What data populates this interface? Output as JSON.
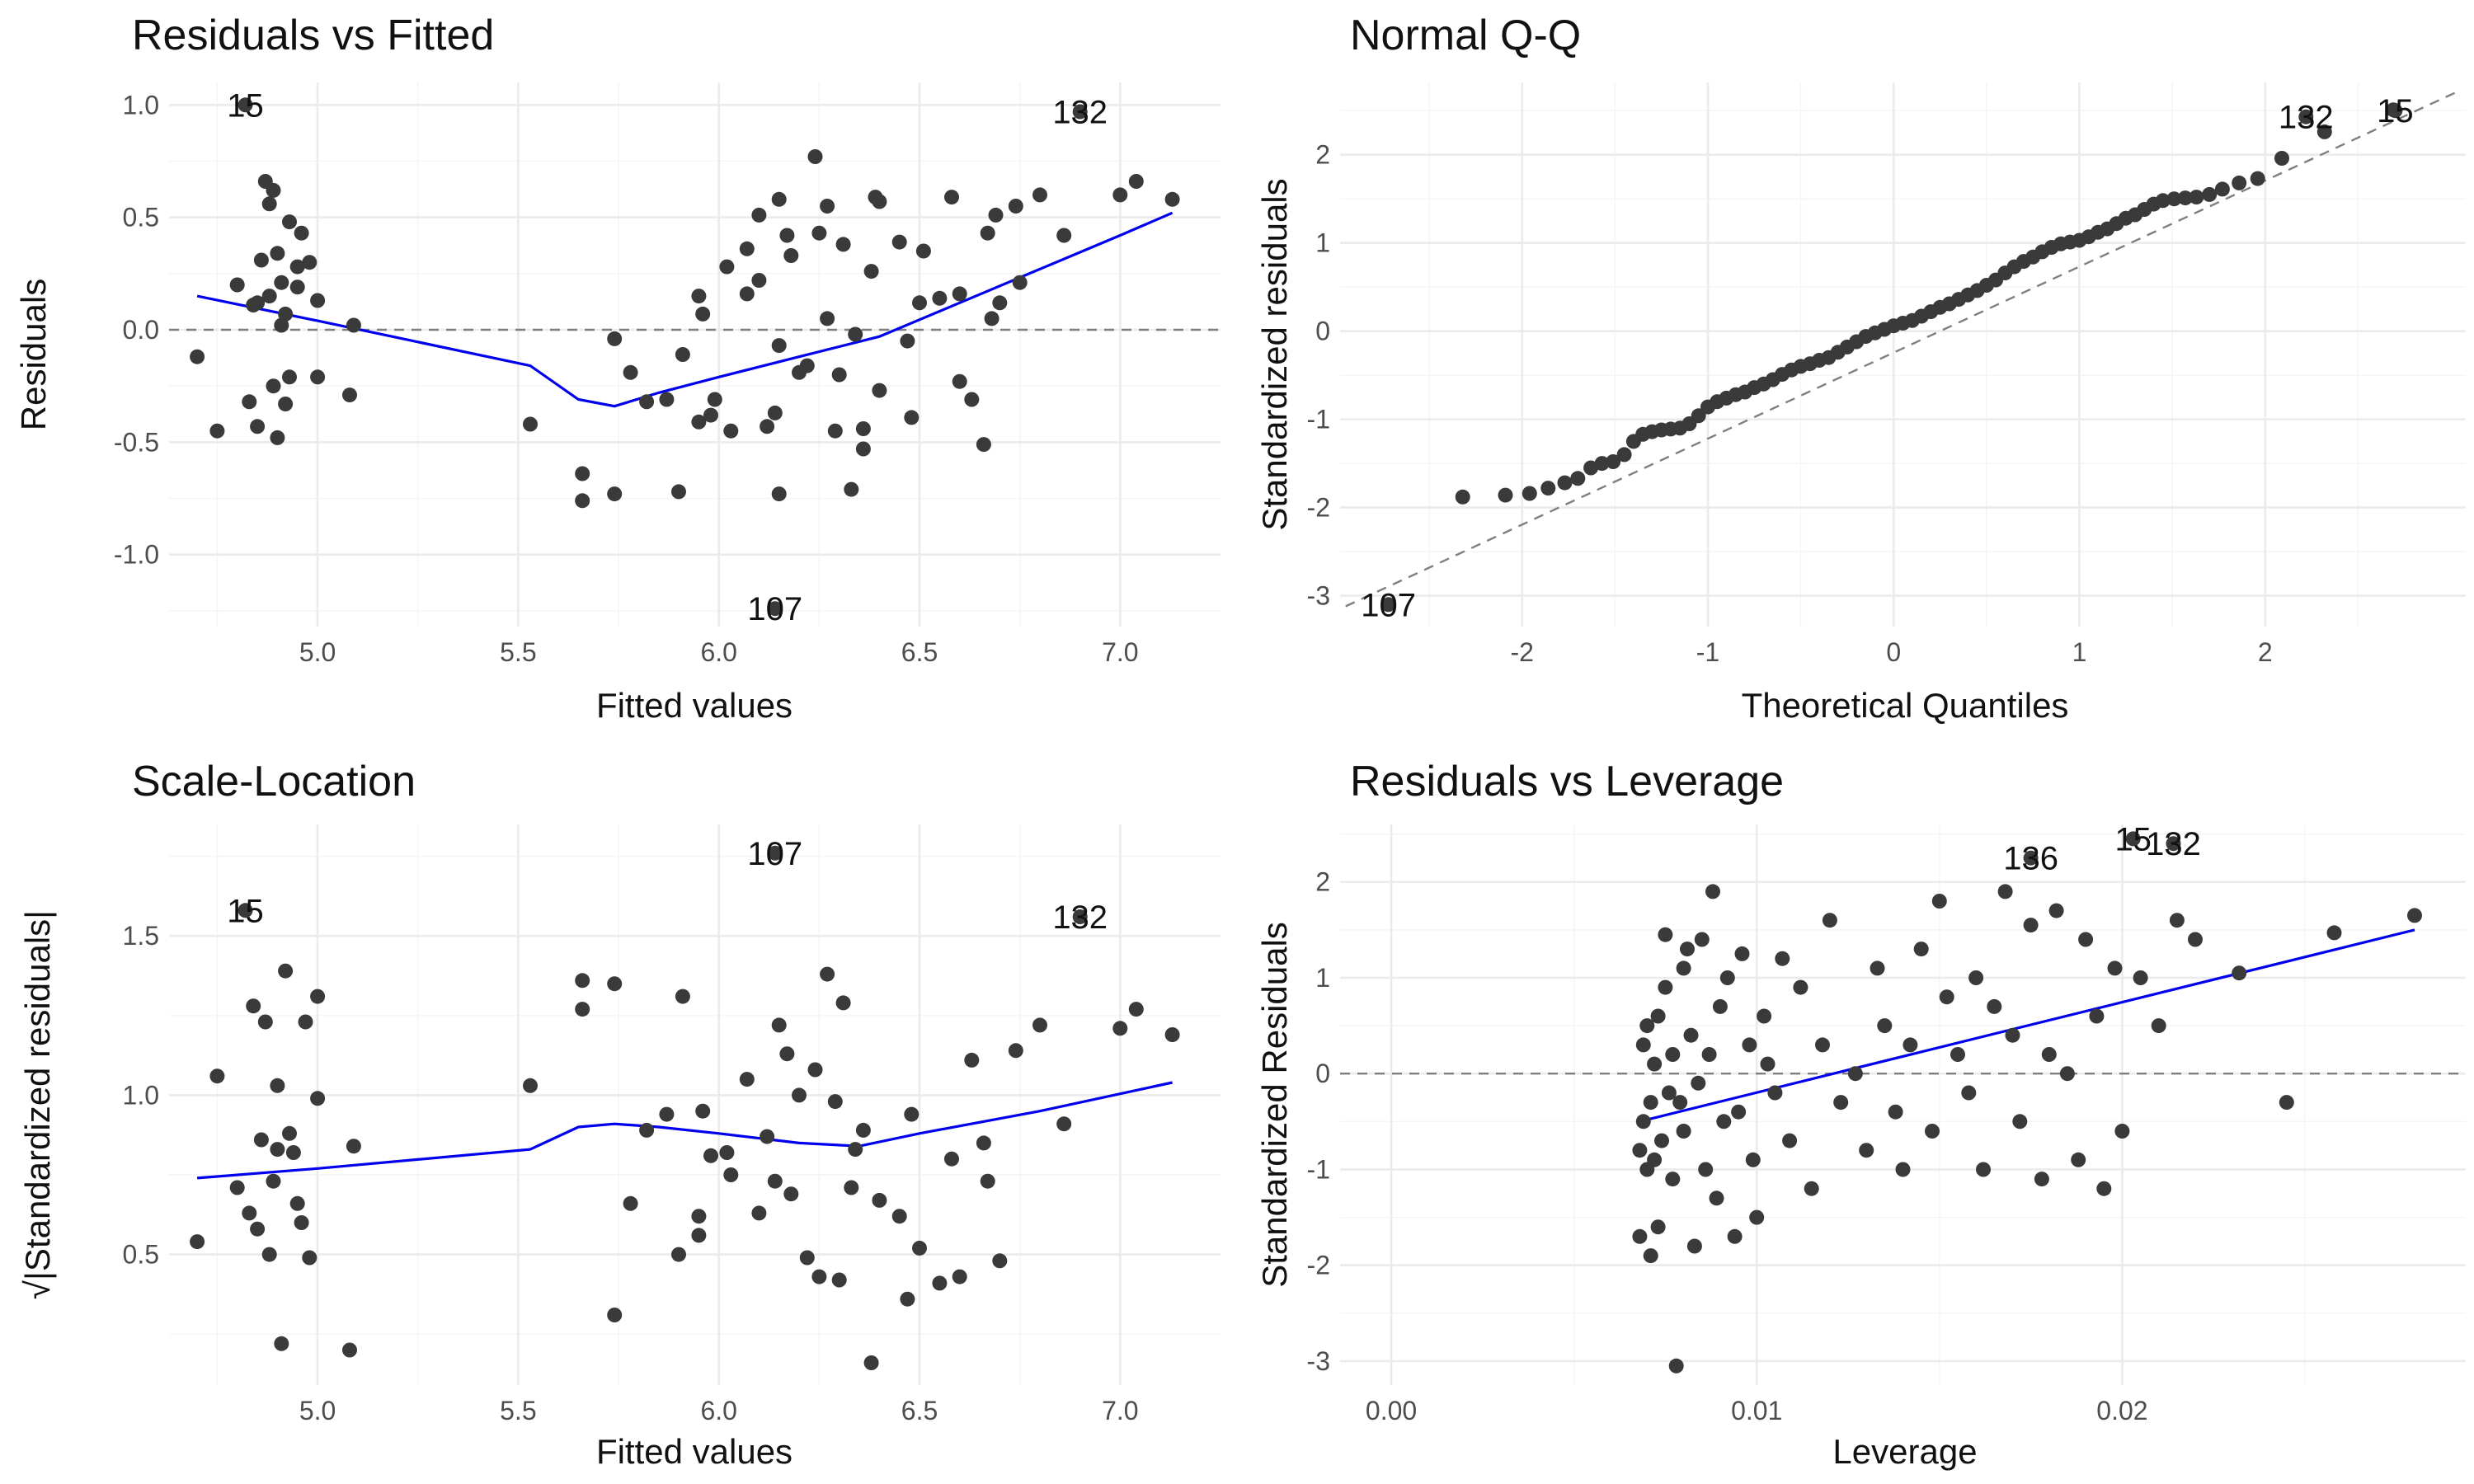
{
  "chart_data": [
    {
      "id": "p1",
      "type": "scatter",
      "title": "Residuals vs Fitted",
      "xlabel": "Fitted values",
      "ylabel": "Residuals",
      "xlim": [
        4.63,
        7.25
      ],
      "ylim": [
        -1.32,
        1.1
      ],
      "xticks": [
        5.0,
        5.5,
        6.0,
        6.5,
        7.0
      ],
      "xtick_labels": [
        "5.0",
        "5.5",
        "6.0",
        "6.5",
        "7.0"
      ],
      "yticks": [
        -1.0,
        -0.5,
        0.0,
        0.5,
        1.0
      ],
      "ytick_labels": [
        "-1.0",
        "-0.5",
        "0.0",
        "0.5",
        "1.0"
      ],
      "grid": true,
      "reference_line": {
        "type": "hline",
        "y": 0
      },
      "smooth": {
        "x": [
          4.7,
          5.0,
          5.53,
          5.65,
          5.74,
          5.85,
          6.0,
          6.2,
          6.4,
          6.6,
          6.8,
          7.0,
          7.13
        ],
        "y": [
          0.15,
          0.04,
          -0.16,
          -0.31,
          -0.34,
          -0.28,
          -0.21,
          -0.12,
          -0.03,
          0.12,
          0.27,
          0.42,
          0.52
        ]
      },
      "points": {
        "x": [
          4.7,
          4.75,
          4.8,
          4.83,
          4.84,
          4.85,
          4.85,
          4.86,
          4.87,
          4.88,
          4.88,
          4.89,
          4.89,
          4.9,
          4.9,
          4.91,
          4.91,
          4.92,
          4.92,
          4.93,
          4.93,
          4.95,
          4.95,
          4.96,
          4.98,
          5.0,
          5.0,
          5.08,
          5.09,
          5.53,
          5.66,
          5.66,
          5.74,
          5.74,
          5.78,
          5.82,
          5.87,
          5.9,
          5.91,
          5.95,
          5.95,
          5.96,
          5.98,
          5.99,
          6.02,
          6.03,
          6.07,
          6.07,
          6.1,
          6.1,
          6.12,
          6.14,
          6.15,
          6.15,
          6.15,
          6.17,
          6.18,
          6.2,
          6.22,
          6.24,
          6.25,
          6.27,
          6.27,
          6.29,
          6.3,
          6.31,
          6.33,
          6.34,
          6.36,
          6.36,
          6.38,
          6.39,
          6.4,
          6.4,
          6.45,
          6.47,
          6.48,
          6.5,
          6.51,
          6.55,
          6.58,
          6.6,
          6.6,
          6.63,
          6.66,
          6.67,
          6.68,
          6.69,
          6.7,
          6.74,
          6.75,
          6.8,
          6.86,
          7.0,
          7.04,
          7.13
        ],
        "y": [
          -0.12,
          -0.45,
          0.2,
          -0.32,
          0.11,
          -0.43,
          0.12,
          0.31,
          0.66,
          0.15,
          0.56,
          0.62,
          -0.25,
          0.34,
          -0.48,
          0.21,
          0.02,
          0.07,
          -0.33,
          -0.21,
          0.48,
          0.28,
          0.19,
          0.43,
          0.3,
          0.13,
          -0.21,
          -0.29,
          0.02,
          -0.42,
          -0.64,
          -0.76,
          -0.04,
          -0.73,
          -0.19,
          -0.32,
          -0.31,
          -0.72,
          -0.11,
          0.15,
          -0.41,
          0.07,
          -0.38,
          -0.31,
          0.28,
          -0.45,
          0.36,
          0.16,
          0.22,
          0.51,
          -0.43,
          -0.37,
          0.58,
          -0.07,
          -0.73,
          0.42,
          0.33,
          -0.19,
          -0.16,
          0.77,
          0.43,
          0.55,
          0.05,
          -0.45,
          -0.2,
          0.38,
          -0.71,
          -0.02,
          -0.44,
          -0.53,
          0.26,
          0.59,
          0.57,
          -0.27,
          0.39,
          -0.05,
          -0.39,
          0.12,
          0.35,
          0.14,
          0.59,
          -0.23,
          0.16,
          -0.31,
          -0.51,
          0.43,
          0.05,
          0.51,
          0.12,
          0.55,
          0.21,
          0.6,
          0.42,
          0.6,
          0.66,
          0.58
        ]
      },
      "labeled_points": [
        {
          "label": "15",
          "x": 4.82,
          "y": 1.0
        },
        {
          "label": "132",
          "x": 6.9,
          "y": 0.97
        },
        {
          "label": "107",
          "x": 6.14,
          "y": -1.24
        }
      ]
    },
    {
      "id": "p2",
      "type": "scatter",
      "title": "Normal Q-Q",
      "xlabel": "Theoretical Quantiles",
      "ylabel": "Standardized residuals",
      "xlim": [
        -2.98,
        3.08
      ],
      "ylim": [
        -3.35,
        2.82
      ],
      "xticks": [
        -2,
        -1,
        0,
        1,
        2
      ],
      "xtick_labels": [
        "-2",
        "-1",
        "0",
        "1",
        "2"
      ],
      "yticks": [
        -3,
        -2,
        -1,
        0,
        1,
        2
      ],
      "ytick_labels": [
        "-3",
        "-2",
        "-1",
        "0",
        "1",
        "2"
      ],
      "grid": true,
      "reference_line": {
        "type": "abline",
        "x": [
          -2.95,
          3.05
        ],
        "y": [
          -3.12,
          2.73
        ]
      },
      "points": {
        "x": [
          -2.32,
          -2.09,
          -1.96,
          -1.86,
          -1.77,
          -1.7,
          -1.63,
          -1.57,
          -1.51,
          -1.45,
          -1.4,
          -1.35,
          -1.3,
          -1.25,
          -1.2,
          -1.15,
          -1.1,
          -1.05,
          -1.0,
          -0.95,
          -0.9,
          -0.85,
          -0.8,
          -0.75,
          -0.7,
          -0.65,
          -0.6,
          -0.55,
          -0.5,
          -0.45,
          -0.4,
          -0.35,
          -0.3,
          -0.25,
          -0.2,
          -0.15,
          -0.1,
          -0.05,
          0.0,
          0.05,
          0.1,
          0.15,
          0.2,
          0.25,
          0.3,
          0.35,
          0.4,
          0.45,
          0.5,
          0.55,
          0.6,
          0.65,
          0.7,
          0.75,
          0.8,
          0.85,
          0.9,
          0.95,
          1.0,
          1.05,
          1.1,
          1.15,
          1.2,
          1.25,
          1.3,
          1.35,
          1.4,
          1.45,
          1.51,
          1.57,
          1.63,
          1.7,
          1.77,
          1.86,
          1.96,
          2.09,
          2.32,
          2.69
        ],
        "y": [
          -1.88,
          -1.86,
          -1.84,
          -1.78,
          -1.72,
          -1.67,
          -1.55,
          -1.5,
          -1.48,
          -1.4,
          -1.25,
          -1.17,
          -1.14,
          -1.12,
          -1.11,
          -1.1,
          -1.05,
          -0.96,
          -0.86,
          -0.8,
          -0.76,
          -0.72,
          -0.69,
          -0.64,
          -0.6,
          -0.55,
          -0.49,
          -0.44,
          -0.4,
          -0.37,
          -0.33,
          -0.3,
          -0.24,
          -0.18,
          -0.12,
          -0.06,
          -0.02,
          0.02,
          0.06,
          0.09,
          0.12,
          0.17,
          0.22,
          0.27,
          0.31,
          0.36,
          0.41,
          0.46,
          0.52,
          0.58,
          0.66,
          0.73,
          0.79,
          0.84,
          0.9,
          0.95,
          0.99,
          1.01,
          1.03,
          1.07,
          1.12,
          1.16,
          1.22,
          1.28,
          1.32,
          1.38,
          1.44,
          1.48,
          1.5,
          1.51,
          1.52,
          1.55,
          1.61,
          1.68,
          1.73,
          1.96,
          2.26,
          2.51
        ]
      },
      "labeled_points": [
        {
          "label": "132",
          "x": 2.22,
          "y": 2.43
        },
        {
          "label": "15",
          "x": 2.7,
          "y": 2.5
        },
        {
          "label": "107",
          "x": -2.72,
          "y": -3.1
        }
      ]
    },
    {
      "id": "p3",
      "type": "scatter",
      "title": "Scale-Location",
      "xlabel": "Fitted values",
      "ylabel": "√|Standardized residuals|",
      "xlim": [
        4.63,
        7.25
      ],
      "ylim": [
        0.09,
        1.85
      ],
      "xticks": [
        5.0,
        5.5,
        6.0,
        6.5,
        7.0
      ],
      "xtick_labels": [
        "5.0",
        "5.5",
        "6.0",
        "6.5",
        "7.0"
      ],
      "yticks": [
        0.5,
        1.0,
        1.5
      ],
      "ytick_labels": [
        "0.5",
        "1.0",
        "1.5"
      ],
      "grid": true,
      "smooth": {
        "x": [
          4.7,
          5.0,
          5.53,
          5.65,
          5.74,
          5.85,
          6.0,
          6.2,
          6.35,
          6.5,
          6.8,
          7.13
        ],
        "y": [
          0.74,
          0.77,
          0.83,
          0.9,
          0.91,
          0.9,
          0.88,
          0.85,
          0.84,
          0.88,
          0.95,
          1.04
        ]
      },
      "points": {
        "x": [
          4.7,
          4.75,
          4.8,
          4.83,
          4.84,
          4.85,
          4.86,
          4.87,
          4.88,
          4.89,
          4.9,
          4.9,
          4.91,
          4.92,
          4.93,
          4.94,
          4.95,
          4.96,
          4.97,
          4.98,
          5.0,
          5.0,
          5.08,
          5.09,
          5.53,
          5.66,
          5.66,
          5.74,
          5.74,
          5.78,
          5.82,
          5.87,
          5.9,
          5.91,
          5.95,
          5.95,
          5.96,
          5.98,
          6.02,
          6.03,
          6.07,
          6.1,
          6.12,
          6.14,
          6.15,
          6.17,
          6.18,
          6.2,
          6.22,
          6.24,
          6.25,
          6.27,
          6.29,
          6.3,
          6.31,
          6.33,
          6.34,
          6.36,
          6.38,
          6.4,
          6.45,
          6.47,
          6.48,
          6.5,
          6.55,
          6.58,
          6.6,
          6.63,
          6.66,
          6.67,
          6.7,
          6.74,
          6.8,
          6.86,
          7.0,
          7.04,
          7.13
        ],
        "y": [
          0.54,
          1.06,
          0.71,
          0.63,
          1.28,
          0.58,
          0.86,
          1.23,
          0.5,
          0.73,
          0.83,
          1.03,
          0.22,
          1.39,
          0.88,
          0.82,
          0.66,
          0.6,
          1.23,
          0.49,
          0.99,
          1.31,
          0.2,
          0.84,
          1.03,
          1.27,
          1.36,
          0.31,
          1.35,
          0.66,
          0.89,
          0.94,
          0.5,
          1.31,
          0.56,
          0.62,
          0.95,
          0.81,
          0.82,
          0.75,
          1.05,
          0.63,
          0.87,
          0.73,
          1.22,
          1.13,
          0.69,
          1.0,
          0.49,
          1.08,
          0.43,
          1.38,
          0.98,
          0.42,
          1.29,
          0.71,
          0.83,
          0.89,
          0.16,
          0.67,
          0.62,
          0.36,
          0.94,
          0.52,
          0.41,
          0.8,
          0.43,
          1.11,
          0.85,
          0.73,
          0.48,
          1.14,
          1.22,
          0.91,
          1.21,
          1.27,
          1.19
        ]
      },
      "labeled_points": [
        {
          "label": "15",
          "x": 4.82,
          "y": 1.58
        },
        {
          "label": "107",
          "x": 6.14,
          "y": 1.76
        },
        {
          "label": "132",
          "x": 6.9,
          "y": 1.56
        }
      ]
    },
    {
      "id": "p4",
      "type": "scatter",
      "title": "Residuals vs Leverage",
      "xlabel": "Leverage",
      "ylabel": "Standardized Residuals",
      "xlim": [
        -0.0014,
        0.0294
      ],
      "ylim": [
        -3.25,
        2.6
      ],
      "xticks": [
        0.0,
        0.01,
        0.02
      ],
      "xtick_labels": [
        "0.00",
        "0.01",
        "0.02"
      ],
      "yticks": [
        -3,
        -2,
        -1,
        0,
        1,
        2
      ],
      "ytick_labels": [
        "-3",
        "-2",
        "-1",
        "0",
        "1",
        "2"
      ],
      "grid": true,
      "reference_line": {
        "type": "hline",
        "y": 0
      },
      "smooth": {
        "x": [
          0.0068,
          0.028
        ],
        "y": [
          -0.5,
          1.5
        ]
      },
      "points": {
        "x": [
          0.0068,
          0.0068,
          0.0069,
          0.0069,
          0.007,
          0.007,
          0.0071,
          0.0071,
          0.0072,
          0.0072,
          0.0073,
          0.0073,
          0.0074,
          0.0075,
          0.0075,
          0.0076,
          0.0077,
          0.0077,
          0.0078,
          0.0079,
          0.008,
          0.008,
          0.0081,
          0.0082,
          0.0083,
          0.0084,
          0.0085,
          0.0086,
          0.0087,
          0.0088,
          0.0089,
          0.009,
          0.0091,
          0.0092,
          0.0094,
          0.0095,
          0.0096,
          0.0098,
          0.0099,
          0.01,
          0.0102,
          0.0103,
          0.0105,
          0.0107,
          0.0109,
          0.0112,
          0.0115,
          0.0118,
          0.012,
          0.0123,
          0.0127,
          0.013,
          0.0133,
          0.0135,
          0.0138,
          0.014,
          0.0142,
          0.0145,
          0.0148,
          0.015,
          0.0152,
          0.0155,
          0.0158,
          0.016,
          0.0162,
          0.0165,
          0.0168,
          0.017,
          0.0172,
          0.0175,
          0.0178,
          0.018,
          0.0182,
          0.0185,
          0.0188,
          0.019,
          0.0193,
          0.0195,
          0.0198,
          0.02,
          0.0205,
          0.021,
          0.0215,
          0.022,
          0.0232,
          0.0245,
          0.0258,
          0.028
        ],
        "y": [
          -0.8,
          -1.7,
          0.3,
          -0.5,
          -1.0,
          0.5,
          -0.3,
          -1.9,
          -0.9,
          0.1,
          -1.6,
          0.6,
          -0.7,
          1.45,
          0.9,
          -0.2,
          -1.1,
          0.2,
          -3.05,
          -0.3,
          1.1,
          -0.6,
          1.3,
          0.4,
          -1.8,
          -0.1,
          1.4,
          -1.0,
          0.2,
          1.9,
          -1.3,
          0.7,
          -0.5,
          1.0,
          -1.7,
          -0.4,
          1.25,
          0.3,
          -0.9,
          -1.5,
          0.6,
          0.1,
          -0.2,
          1.2,
          -0.7,
          0.9,
          -1.2,
          0.3,
          1.6,
          -0.3,
          0.0,
          -0.8,
          1.1,
          0.5,
          -0.4,
          -1.0,
          0.3,
          1.3,
          -0.6,
          1.8,
          0.8,
          0.2,
          -0.2,
          1.0,
          -1.0,
          0.7,
          1.9,
          0.4,
          -0.5,
          1.55,
          -1.1,
          0.2,
          1.7,
          0.0,
          -0.9,
          1.4,
          0.6,
          -1.2,
          1.1,
          -0.6,
          1.0,
          0.5,
          1.6,
          1.4,
          1.05,
          -0.3,
          1.47,
          1.65
        ]
      },
      "labeled_points": [
        {
          "label": "136",
          "x": 0.0175,
          "y": 2.25
        },
        {
          "label": "15",
          "x": 0.0203,
          "y": 2.45
        },
        {
          "label": "132",
          "x": 0.0214,
          "y": 2.4
        }
      ]
    }
  ]
}
